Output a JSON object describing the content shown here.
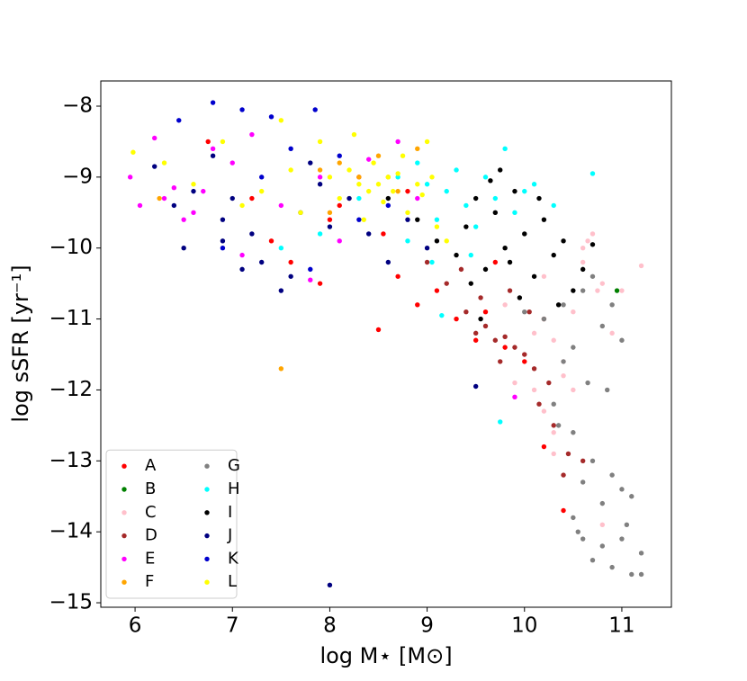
{
  "chart_data": {
    "type": "scatter",
    "x_label": "log M⋆ [M⊙]",
    "y_label": "log sSFR [yr⁻¹]",
    "xlim": [
      5.648,
      11.509
    ],
    "ylim": [
      -15.063,
      -7.645
    ],
    "xticks": [
      6,
      7,
      8,
      9,
      10,
      11
    ],
    "yticks": [
      {
        "value": -8,
        "label": "−8"
      },
      {
        "value": -9,
        "label": "−9"
      },
      {
        "value": -10,
        "label": "−10"
      },
      {
        "value": -11,
        "label": "−11"
      },
      {
        "value": -12,
        "label": "−12"
      },
      {
        "value": -13,
        "label": "−13"
      },
      {
        "value": -14,
        "label": "−14"
      },
      {
        "value": -15,
        "label": "−15"
      }
    ],
    "grid": false,
    "legend": "lower left",
    "series": [
      {
        "name": "A",
        "color": "#ff0000",
        "x": [
          6.75,
          7.2,
          7.6,
          7.9,
          8.1,
          8.3,
          8.5,
          8.55,
          8.7,
          8.9,
          9.1,
          9.3,
          9.5,
          9.6,
          9.8,
          10.0,
          10.2,
          10.4,
          9.7,
          8.0,
          7.4,
          8.8
        ],
        "y": [
          -8.5,
          -9.3,
          -10.2,
          -10.5,
          -9.4,
          -9.0,
          -11.15,
          -9.8,
          -10.4,
          -10.8,
          -10.6,
          -11.0,
          -11.3,
          -10.9,
          -11.4,
          -11.6,
          -12.8,
          -13.7,
          -10.2,
          -9.6,
          -9.9,
          -9.2
        ]
      },
      {
        "name": "B",
        "color": "#008000",
        "x": [
          10.95
        ],
        "y": [
          -10.6
        ]
      },
      {
        "name": "C",
        "color": "#ffc0cb",
        "x": [
          9.8,
          10.0,
          10.2,
          10.3,
          10.4,
          10.5,
          10.6,
          10.7,
          10.8,
          10.9,
          11.0,
          11.2,
          10.1,
          10.3,
          10.5,
          10.2,
          10.6,
          10.75,
          10.4,
          9.9,
          10.8,
          10.3,
          10.1,
          10.65
        ],
        "y": [
          -10.8,
          -11.5,
          -12.3,
          -12.9,
          -11.6,
          -10.9,
          -10.2,
          -9.8,
          -10.5,
          -11.2,
          -10.6,
          -10.25,
          -12.0,
          -11.3,
          -12.0,
          -10.4,
          -10.0,
          -10.6,
          -11.8,
          -11.9,
          -13.9,
          -12.6,
          -11.2,
          -9.9
        ]
      },
      {
        "name": "D",
        "color": "#a52a2a",
        "x": [
          9.0,
          9.2,
          9.4,
          9.5,
          9.6,
          9.7,
          9.8,
          9.9,
          10.0,
          10.1,
          10.2,
          10.3,
          10.4,
          9.55,
          9.75,
          9.85,
          10.05,
          10.25,
          10.45,
          9.35,
          10.6,
          10.15
        ],
        "y": [
          -10.2,
          -10.5,
          -10.9,
          -11.2,
          -11.1,
          -11.3,
          -11.25,
          -11.4,
          -11.5,
          -11.7,
          -11.0,
          -12.5,
          -13.2,
          -10.7,
          -11.6,
          -10.6,
          -10.9,
          -11.9,
          -12.9,
          -10.3,
          -13.0,
          -12.2
        ]
      },
      {
        "name": "E",
        "color": "#ff00ff",
        "x": [
          5.95,
          6.05,
          6.2,
          6.3,
          6.5,
          6.6,
          6.8,
          7.0,
          7.2,
          7.5,
          7.8,
          8.1,
          8.4,
          8.7,
          9.9,
          6.4,
          7.1,
          6.7,
          7.9,
          8.9
        ],
        "y": [
          -9.0,
          -9.4,
          -8.45,
          -9.3,
          -9.6,
          -9.5,
          -8.6,
          -8.8,
          -8.4,
          -9.4,
          -10.45,
          -9.9,
          -8.75,
          -8.5,
          -12.1,
          -9.15,
          -10.1,
          -9.2,
          -9.0,
          -9.3
        ]
      },
      {
        "name": "F",
        "color": "#ffa500",
        "x": [
          6.25,
          7.5,
          7.9,
          8.1,
          8.3,
          8.5,
          8.7,
          8.9,
          8.2,
          8.6,
          8.0
        ],
        "y": [
          -9.3,
          -11.7,
          -8.9,
          -8.8,
          -9.0,
          -8.7,
          -9.2,
          -8.6,
          -9.3,
          -9.0,
          -9.5
        ]
      },
      {
        "name": "G",
        "color": "#808080",
        "x": [
          10.0,
          10.2,
          10.4,
          10.5,
          10.6,
          10.7,
          10.8,
          10.9,
          11.0,
          10.3,
          10.5,
          10.6,
          10.7,
          10.8,
          10.9,
          11.0,
          11.1,
          11.2,
          10.5,
          10.6,
          10.7,
          10.8,
          10.9,
          11.0,
          11.1,
          11.2,
          10.4,
          10.65,
          10.85,
          11.05,
          10.35,
          10.55
        ],
        "y": [
          -10.9,
          -11.0,
          -10.8,
          -11.4,
          -10.6,
          -10.4,
          -11.1,
          -10.8,
          -11.3,
          -12.2,
          -12.6,
          -13.3,
          -13.0,
          -13.6,
          -13.2,
          -13.4,
          -13.5,
          -14.3,
          -13.8,
          -14.1,
          -14.4,
          -14.2,
          -14.5,
          -14.1,
          -14.6,
          -14.6,
          -11.6,
          -11.9,
          -12.0,
          -13.9,
          -12.5,
          -14.0
        ]
      },
      {
        "name": "H",
        "color": "#00ffff",
        "x": [
          7.5,
          7.9,
          8.3,
          8.7,
          8.9,
          9.0,
          9.1,
          9.2,
          9.3,
          9.4,
          9.5,
          9.6,
          9.7,
          9.8,
          9.9,
          10.0,
          10.1,
          10.3,
          10.7,
          9.75,
          8.8,
          9.05,
          9.45,
          9.15
        ],
        "y": [
          -10.0,
          -9.8,
          -9.3,
          -9.0,
          -8.8,
          -9.1,
          -9.6,
          -9.2,
          -8.9,
          -9.4,
          -9.7,
          -9.0,
          -9.3,
          -8.6,
          -9.5,
          -9.2,
          -9.1,
          -9.4,
          -8.95,
          -12.45,
          -9.9,
          -10.2,
          -10.1,
          -10.95
        ]
      },
      {
        "name": "I",
        "color": "#000000",
        "x": [
          8.6,
          8.9,
          9.1,
          9.3,
          9.4,
          9.5,
          9.6,
          9.7,
          9.8,
          9.9,
          10.0,
          10.1,
          10.2,
          10.3,
          10.4,
          10.5,
          10.6,
          10.7,
          9.75,
          9.95,
          10.15,
          9.45,
          9.65,
          10.35,
          9.55,
          9.85
        ],
        "y": [
          -9.3,
          -9.6,
          -9.9,
          -10.1,
          -9.7,
          -9.3,
          -10.3,
          -9.5,
          -10.0,
          -9.2,
          -9.8,
          -10.4,
          -9.6,
          -10.1,
          -9.9,
          -10.6,
          -10.3,
          -9.95,
          -8.9,
          -10.7,
          -9.3,
          -10.5,
          -9.05,
          -10.8,
          -11.0,
          -10.2
        ]
      },
      {
        "name": "J",
        "color": "#000080",
        "x": [
          6.2,
          6.4,
          6.6,
          6.8,
          6.9,
          7.0,
          7.2,
          7.3,
          7.5,
          7.7,
          7.9,
          8.0,
          8.2,
          8.4,
          8.6,
          8.8,
          9.0,
          6.5,
          7.1,
          7.6,
          8.0,
          9.5,
          6.9,
          7.8
        ],
        "y": [
          -8.85,
          -9.4,
          -9.2,
          -8.7,
          -9.6,
          -9.3,
          -9.8,
          -10.2,
          -10.6,
          -9.5,
          -9.1,
          -9.7,
          -9.3,
          -9.8,
          -10.2,
          -9.6,
          -10.0,
          -10.0,
          -10.3,
          -10.4,
          -14.75,
          -11.95,
          -9.9,
          -8.8
        ]
      },
      {
        "name": "K",
        "color": "#0000cd",
        "x": [
          6.45,
          6.8,
          7.1,
          7.4,
          7.6,
          7.85,
          8.1,
          8.3,
          6.9,
          7.3,
          7.8,
          8.6
        ],
        "y": [
          -8.2,
          -7.95,
          -8.05,
          -8.15,
          -8.6,
          -8.05,
          -8.7,
          -9.6,
          -10.0,
          -9.0,
          -10.3,
          -9.4
        ]
      },
      {
        "name": "L",
        "color": "#ffff00",
        "x": [
          5.98,
          6.3,
          6.6,
          6.9,
          7.1,
          7.3,
          7.5,
          7.7,
          7.9,
          8.0,
          8.1,
          8.2,
          8.3,
          8.4,
          8.45,
          8.5,
          8.55,
          8.6,
          8.65,
          8.7,
          8.8,
          8.9,
          9.0,
          9.1,
          9.2,
          8.35,
          8.75,
          8.25,
          7.6,
          8.95,
          9.05
        ],
        "y": [
          -8.65,
          -8.8,
          -9.1,
          -8.5,
          -9.4,
          -9.2,
          -8.2,
          -9.5,
          -8.5,
          -9.0,
          -9.3,
          -8.9,
          -9.1,
          -9.2,
          -8.8,
          -9.1,
          -9.35,
          -9.0,
          -9.2,
          -8.95,
          -9.5,
          -9.1,
          -8.5,
          -9.7,
          -9.9,
          -9.6,
          -8.7,
          -8.4,
          -8.9,
          -9.25,
          -9.0
        ]
      }
    ]
  }
}
